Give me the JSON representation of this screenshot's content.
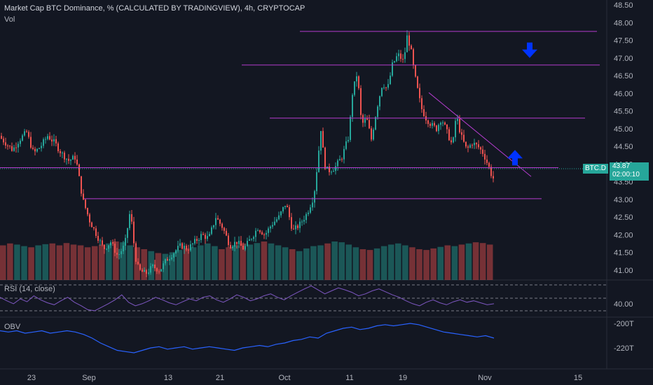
{
  "legend": {
    "title": "Market Cap BTC Dominance, % (CALCULATED BY TRADINGVIEW), 4h, CRYPTOCAP",
    "volume": "Vol",
    "rsi": "RSI (14, close)",
    "obv": "OBV"
  },
  "last_price": {
    "symbol": "BTC.D",
    "value": "43.87",
    "countdown": "02:00:10"
  },
  "colors": {
    "up": "#26a69a",
    "down": "#ef5350",
    "level_line": "#b43ccd",
    "rsi_line": "#7e57c2",
    "obv_line": "#2962ff",
    "arrow": "#0033ff",
    "background": "#131722"
  },
  "chart_data": [
    {
      "type": "candlestick",
      "x_ticks": [
        "23",
        "Sep",
        "13",
        "21",
        "Oct",
        "11",
        "19",
        "Nov",
        "15"
      ],
      "y_ticks": [
        "48.50",
        "48.00",
        "47.50",
        "47.00",
        "46.50",
        "46.00",
        "45.50",
        "45.00",
        "44.50",
        "44.00",
        "43.50",
        "43.00",
        "42.50",
        "42.00",
        "41.50",
        "41.00"
      ],
      "ylim": [
        40.7,
        48.6
      ],
      "close_path": [
        [
          0,
          44.8
        ],
        [
          10,
          44.6
        ],
        [
          20,
          44.4
        ],
        [
          30,
          44.7
        ],
        [
          40,
          44.9
        ],
        [
          50,
          44.3
        ],
        [
          60,
          44.5
        ],
        [
          70,
          44.8
        ],
        [
          80,
          44.6
        ],
        [
          90,
          44.3
        ],
        [
          100,
          44.1
        ],
        [
          110,
          44.2
        ],
        [
          115,
          43.6
        ],
        [
          120,
          43.0
        ],
        [
          130,
          42.4
        ],
        [
          140,
          42.0
        ],
        [
          150,
          41.6
        ],
        [
          160,
          41.8
        ],
        [
          170,
          41.4
        ],
        [
          180,
          41.7
        ],
        [
          188,
          42.7
        ],
        [
          195,
          41.4
        ],
        [
          200,
          41.0
        ],
        [
          210,
          40.9
        ],
        [
          220,
          41.1
        ],
        [
          230,
          41.0
        ],
        [
          240,
          41.3
        ],
        [
          250,
          41.5
        ],
        [
          260,
          41.7
        ],
        [
          270,
          41.6
        ],
        [
          280,
          41.8
        ],
        [
          290,
          42.0
        ],
        [
          300,
          41.9
        ],
        [
          310,
          42.5
        ],
        [
          320,
          42.2
        ],
        [
          330,
          41.7
        ],
        [
          340,
          41.8
        ],
        [
          350,
          41.6
        ],
        [
          360,
          41.9
        ],
        [
          370,
          42.2
        ],
        [
          380,
          42.0
        ],
        [
          390,
          42.3
        ],
        [
          400,
          42.5
        ],
        [
          410,
          42.9
        ],
        [
          420,
          42.1
        ],
        [
          430,
          42.3
        ],
        [
          440,
          42.6
        ],
        [
          450,
          43.1
        ],
        [
          455,
          44.0
        ],
        [
          460,
          45.0
        ],
        [
          465,
          44.0
        ],
        [
          470,
          43.8
        ],
        [
          480,
          43.9
        ],
        [
          490,
          44.2
        ],
        [
          500,
          44.8
        ],
        [
          505,
          46.0
        ],
        [
          512,
          46.6
        ],
        [
          518,
          45.1
        ],
        [
          525,
          45.3
        ],
        [
          532,
          44.7
        ],
        [
          540,
          45.6
        ],
        [
          548,
          46.3
        ],
        [
          555,
          46.1
        ],
        [
          562,
          46.8
        ],
        [
          570,
          47.1
        ],
        [
          578,
          46.9
        ],
        [
          583,
          47.6
        ],
        [
          588,
          47.3
        ],
        [
          593,
          46.6
        ],
        [
          598,
          46.1
        ],
        [
          603,
          45.6
        ],
        [
          610,
          45.3
        ],
        [
          618,
          45.1
        ],
        [
          625,
          45.0
        ],
        [
          632,
          45.3
        ],
        [
          640,
          44.9
        ],
        [
          648,
          44.5
        ],
        [
          653,
          45.4
        ],
        [
          660,
          44.8
        ],
        [
          668,
          44.4
        ],
        [
          676,
          44.6
        ],
        [
          684,
          44.5
        ],
        [
          692,
          44.3
        ],
        [
          700,
          43.9
        ],
        [
          705,
          43.6
        ]
      ],
      "horizontal_levels": [
        {
          "price": 47.75,
          "x_start": 428,
          "x_end": 852
        },
        {
          "price": 46.8,
          "x_start": 345,
          "x_end": 856
        },
        {
          "price": 45.3,
          "x_start": 385,
          "x_end": 835
        },
        {
          "price": 43.9,
          "x_start": 0,
          "x_end": 797
        },
        {
          "price": 43.02,
          "x_start": 120,
          "x_end": 773
        }
      ],
      "trendline": {
        "x1": 612,
        "y1": 46.02,
        "x2": 758,
        "y2": 43.65
      },
      "arrows": [
        {
          "direction": "down",
          "x": 756,
          "price": 47.2
        },
        {
          "direction": "up",
          "x": 735,
          "price": 44.2
        }
      ]
    },
    {
      "type": "bar",
      "name": "Vol",
      "values_relative": [
        0.9,
        0.95,
        0.92,
        0.88,
        0.85,
        0.9,
        0.93,
        0.95,
        0.9,
        0.96,
        0.92,
        0.9,
        0.85,
        0.88,
        0.92,
        0.95,
        1.0,
        0.98,
        0.9,
        0.85,
        0.8,
        0.75,
        0.7,
        0.68,
        0.72,
        0.78,
        0.82,
        0.85,
        0.9,
        0.95,
        0.88,
        0.8,
        0.85,
        0.9,
        0.95,
        0.92,
        0.96,
        1.0,
        0.95,
        0.9,
        0.85,
        0.8,
        0.75,
        0.82,
        0.88,
        0.9,
        0.95,
        1.0,
        0.98,
        0.92,
        0.85,
        0.8,
        0.78,
        0.82,
        0.88,
        0.92,
        0.95,
        0.9,
        0.85,
        0.8,
        0.78,
        0.82,
        0.86,
        0.9,
        0.88,
        0.92,
        0.95,
        0.98,
        0.96,
        0.92
      ]
    },
    {
      "type": "line",
      "name": "RSI (14, close)",
      "y_ticks": [
        "40.00"
      ],
      "values": [
        55,
        48,
        42,
        52,
        46,
        58,
        50,
        44,
        40,
        48,
        55,
        45,
        38,
        30,
        28,
        35,
        42,
        50,
        60,
        45,
        38,
        42,
        48,
        55,
        50,
        44,
        40,
        46,
        52,
        48,
        55,
        58,
        50,
        45,
        52,
        60,
        55,
        48,
        52,
        58,
        62,
        55,
        50,
        58,
        65,
        72,
        78,
        70,
        62,
        68,
        74,
        70,
        65,
        58,
        62,
        68,
        72,
        66,
        60,
        55,
        48,
        42,
        38,
        45,
        50,
        44,
        40,
        46,
        50,
        45,
        48,
        44,
        40,
        42
      ]
    },
    {
      "type": "line",
      "name": "OBV",
      "y_ticks": [
        "-200T",
        "-220T"
      ],
      "values": [
        -206,
        -207,
        -206,
        -208,
        -207,
        -206,
        -208,
        -207,
        -206,
        -207,
        -209,
        -212,
        -216,
        -219,
        -222,
        -223,
        -224,
        -222,
        -220,
        -219,
        -221,
        -220,
        -219,
        -221,
        -220,
        -219,
        -220,
        -221,
        -222,
        -220,
        -219,
        -218,
        -219,
        -217,
        -216,
        -214,
        -213,
        -211,
        -212,
        -208,
        -206,
        -204,
        -203,
        -205,
        -204,
        -202,
        -201,
        -202,
        -201,
        -200,
        -201,
        -203,
        -205,
        -207,
        -208,
        -209,
        -210,
        -211,
        -210,
        -212
      ]
    }
  ]
}
